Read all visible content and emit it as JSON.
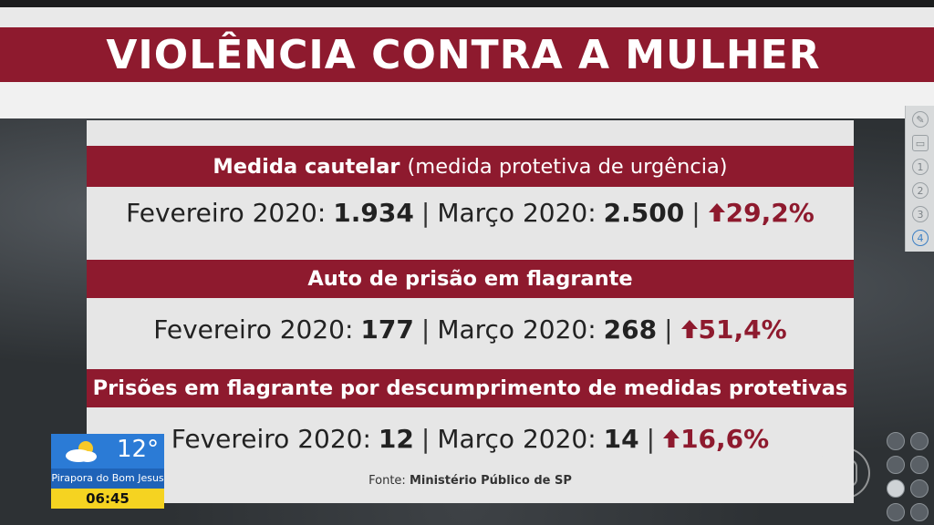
{
  "title": "VIOLÊNCIA CONTRA A MULHER",
  "sections": [
    {
      "heading_bold": "Medida cautelar",
      "heading_light": "(medida protetiva de urgência)",
      "feb_label": "Fevereiro 2020:",
      "feb_value": "1.934",
      "mar_label": "Março 2020:",
      "mar_value": "2.500",
      "change": "29,2%"
    },
    {
      "heading_bold": "Auto de prisão em flagrante",
      "heading_light": "",
      "feb_label": "Fevereiro 2020:",
      "feb_value": "177",
      "mar_label": "Março 2020:",
      "mar_value": "268",
      "change": "51,4%"
    },
    {
      "heading_bold": "Prisões em flagrante por descumprimento de medidas protetivas",
      "heading_light": "",
      "feb_label": "Fevereiro 2020:",
      "feb_value": "12",
      "mar_label": "Março 2020:",
      "mar_value": "14",
      "change": "16,6%"
    }
  ],
  "source_label": "Fonte:",
  "source_name": "Ministério Público de SP",
  "weather": {
    "temperature": "12°",
    "city": "Pirapora do Bom Jesus",
    "time": "06:45",
    "icon": "partly-cloudy-icon"
  },
  "side_toolbar": [
    "pencil-icon",
    "screen-icon",
    "1",
    "2",
    "3",
    "4"
  ],
  "colors": {
    "accent": "#8e1a2e",
    "panel": "#e6e6e6",
    "weather_blue": "#2b7bd6",
    "weather_yellow": "#f5d321"
  }
}
